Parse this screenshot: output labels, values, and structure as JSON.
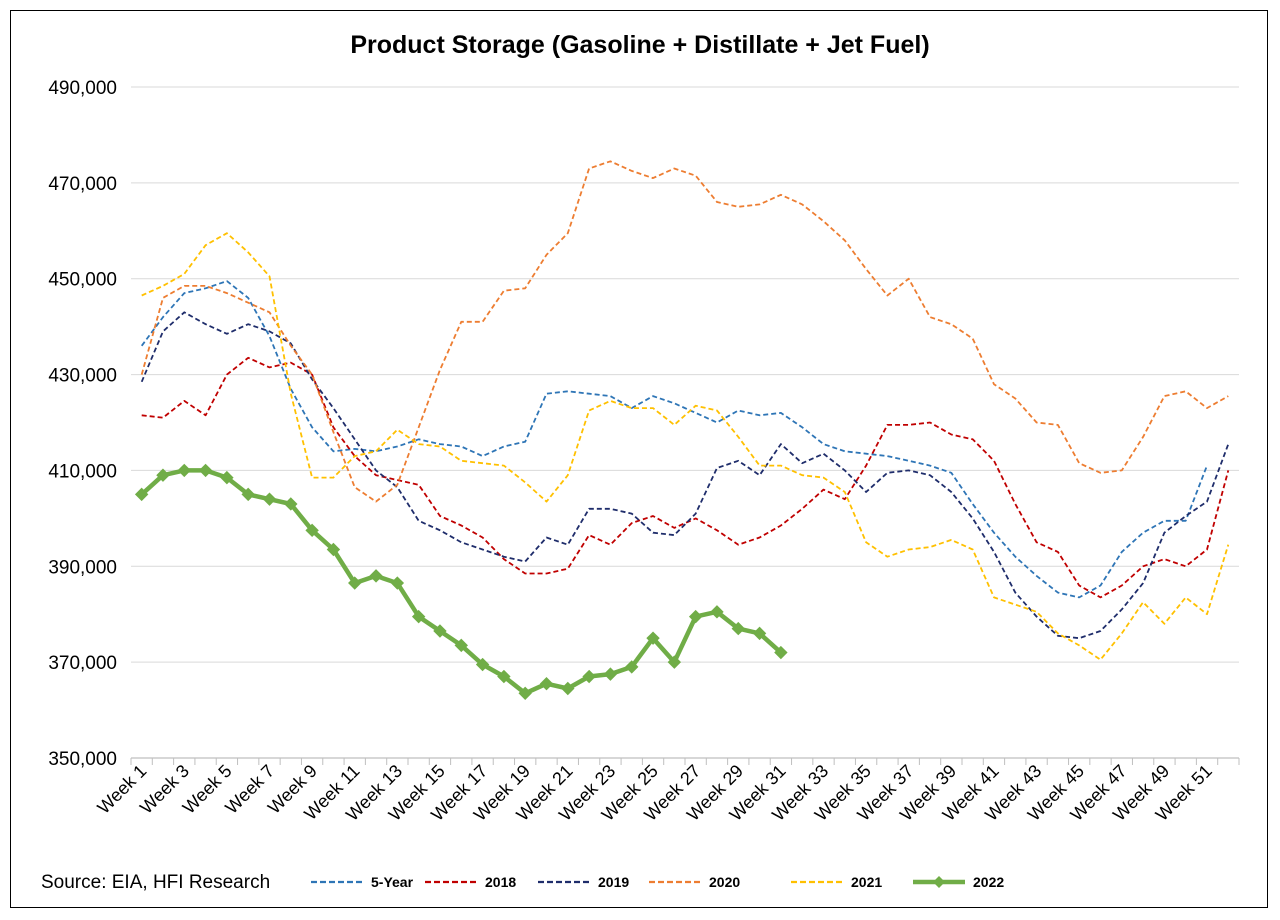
{
  "chart_data": {
    "type": "line",
    "title": "Product Storage (Gasoline + Distillate + Jet Fuel)",
    "source": "Source: EIA, HFI Research",
    "xlabel": "",
    "ylabel": "",
    "ylim": [
      350000,
      490000
    ],
    "yticks": [
      350000,
      370000,
      390000,
      410000,
      430000,
      450000,
      470000,
      490000
    ],
    "ytick_labels": [
      "350,000",
      "370,000",
      "390,000",
      "410,000",
      "430,000",
      "450,000",
      "470,000",
      "490,000"
    ],
    "x_labels": [
      "Week 1",
      "Week 3",
      "Week 5",
      "Week 7",
      "Week 9",
      "Week 11",
      "Week 13",
      "Week 15",
      "Week 17",
      "Week 19",
      "Week 21",
      "Week 23",
      "Week 25",
      "Week 27",
      "Week 29",
      "Week 31",
      "Week 33",
      "Week 35",
      "Week 37",
      "Week 39",
      "Week 41",
      "Week 43",
      "Week 45",
      "Week 47",
      "Week 49",
      "Week 51"
    ],
    "grid": true,
    "legend_position": "bottom",
    "series": [
      {
        "name": "5-Year",
        "color": "#2E75B6",
        "dash": true,
        "values": [
          436000,
          442000,
          447000,
          448000,
          449500,
          446000,
          438000,
          427000,
          419000,
          414000,
          414500,
          414000,
          415000,
          416500,
          415500,
          415000,
          413000,
          415000,
          416000,
          426000,
          426500,
          426000,
          425500,
          423000,
          425500,
          424000,
          422000,
          420000,
          422500,
          421500,
          422000,
          419000,
          415500,
          414000,
          413500,
          413000,
          412000,
          411000,
          409500,
          403000,
          397000,
          392000,
          388000,
          384500,
          383500,
          386000,
          393000,
          397000,
          399500,
          399500,
          411000
        ]
      },
      {
        "name": "2018",
        "color": "#C00000",
        "dash": true,
        "values": [
          421500,
          421000,
          424500,
          421500,
          430000,
          433500,
          431500,
          432500,
          430000,
          419000,
          413000,
          409000,
          408000,
          407000,
          400500,
          398500,
          396000,
          391500,
          388500,
          388500,
          389500,
          396500,
          394500,
          399000,
          400500,
          398000,
          400000,
          397500,
          394500,
          396000,
          398500,
          402000,
          406000,
          404000,
          411000,
          419500,
          419500,
          420000,
          417500,
          416500,
          412000,
          403000,
          395000,
          393000,
          386000,
          383500,
          386000,
          390000,
          391500,
          390000,
          393500,
          410000
        ]
      },
      {
        "name": "2019",
        "color": "#1F2D6B",
        "dash": true,
        "values": [
          428500,
          439000,
          443000,
          440500,
          438500,
          440500,
          439000,
          436500,
          429000,
          423000,
          416500,
          410000,
          406500,
          399500,
          397500,
          395000,
          393500,
          392000,
          391000,
          396000,
          394500,
          402000,
          402000,
          401000,
          397000,
          396500,
          401000,
          410500,
          412000,
          409000,
          415500,
          411500,
          413500,
          410000,
          405500,
          409500,
          410000,
          409000,
          405500,
          400000,
          393000,
          384500,
          379500,
          375500,
          375000,
          376500,
          381000,
          386500,
          397000,
          400500,
          403500,
          415500
        ]
      },
      {
        "name": "2020",
        "color": "#ED7D31",
        "dash": true,
        "values": [
          430000,
          446000,
          448500,
          448500,
          447000,
          445000,
          443000,
          436000,
          430000,
          418000,
          406500,
          403500,
          407000,
          419000,
          431000,
          441000,
          441000,
          447500,
          448000,
          455000,
          459500,
          473000,
          474500,
          472500,
          471000,
          473000,
          471500,
          466000,
          465000,
          465500,
          467500,
          465500,
          462000,
          458000,
          452000,
          446500,
          450000,
          442000,
          440500,
          437500,
          428000,
          425000,
          420000,
          419500,
          411500,
          409500,
          410000,
          417000,
          425500,
          426500,
          423000,
          425500
        ]
      },
      {
        "name": "2021",
        "color": "#FFC000",
        "dash": true,
        "values": [
          446500,
          448500,
          451000,
          457000,
          459500,
          455500,
          450500,
          426000,
          408500,
          408500,
          413000,
          414000,
          418500,
          415500,
          415000,
          412000,
          411500,
          411000,
          407500,
          403500,
          409000,
          422500,
          424500,
          423000,
          423000,
          419500,
          423500,
          422500,
          417000,
          411000,
          411000,
          409000,
          408500,
          405500,
          395000,
          392000,
          393500,
          394000,
          395500,
          393500,
          383500,
          382000,
          380500,
          376000,
          373500,
          370500,
          376000,
          382500,
          378000,
          383500,
          380000,
          394500
        ]
      },
      {
        "name": "2022",
        "color": "#70AD47",
        "dash": false,
        "markers": true,
        "values": [
          405000,
          409000,
          410000,
          410000,
          408500,
          405000,
          404000,
          403000,
          397500,
          393500,
          386500,
          388000,
          386500,
          379500,
          376500,
          373500,
          369500,
          367000,
          363500,
          365500,
          364500,
          367000,
          367500,
          369000,
          375000,
          370000,
          379500,
          380500,
          377000,
          376000,
          372000
        ]
      }
    ]
  }
}
